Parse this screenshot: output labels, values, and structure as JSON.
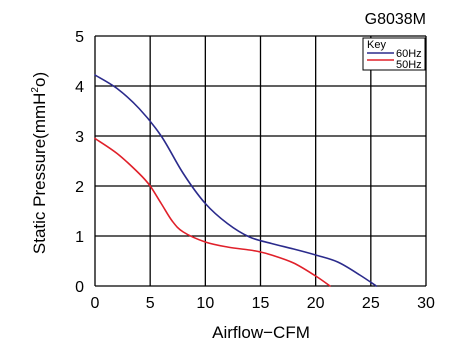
{
  "chart_data": {
    "type": "line",
    "title": "G8038M",
    "xlabel": "Airflow−CFM",
    "ylabel": "Static Pressure(mmH",
    "ylabel_sup": "2",
    "ylabel_end": "o)",
    "xlim": [
      0,
      30
    ],
    "ylim": [
      0,
      5
    ],
    "xticks": [
      "0",
      "5",
      "10",
      "15",
      "20",
      "25",
      "30"
    ],
    "yticks": [
      "0",
      "1",
      "2",
      "3",
      "4",
      "5"
    ],
    "grid": true,
    "legend": {
      "title": "Key",
      "position": "top-right"
    },
    "series": [
      {
        "name": "60Hz",
        "color": "#2b2b8c",
        "points": [
          [
            0,
            4.22
          ],
          [
            2,
            3.95
          ],
          [
            4,
            3.55
          ],
          [
            6,
            3.0
          ],
          [
            8,
            2.25
          ],
          [
            10,
            1.65
          ],
          [
            12,
            1.25
          ],
          [
            14,
            0.98
          ],
          [
            16,
            0.85
          ],
          [
            18,
            0.74
          ],
          [
            20,
            0.62
          ],
          [
            22,
            0.48
          ],
          [
            24,
            0.22
          ],
          [
            25.5,
            0.0
          ]
        ]
      },
      {
        "name": "50Hz",
        "color": "#e0202a",
        "points": [
          [
            0,
            2.95
          ],
          [
            2,
            2.65
          ],
          [
            4,
            2.25
          ],
          [
            5,
            2.0
          ],
          [
            6,
            1.65
          ],
          [
            7,
            1.3
          ],
          [
            8,
            1.08
          ],
          [
            10,
            0.88
          ],
          [
            12,
            0.78
          ],
          [
            14,
            0.72
          ],
          [
            15,
            0.68
          ],
          [
            16,
            0.62
          ],
          [
            18,
            0.46
          ],
          [
            20,
            0.2
          ],
          [
            21.3,
            0.0
          ]
        ]
      }
    ]
  }
}
